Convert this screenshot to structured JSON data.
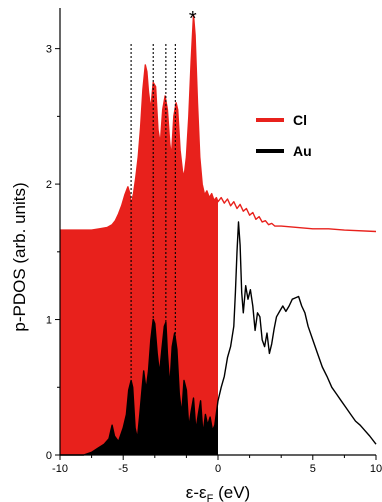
{
  "chart_data": {
    "type": "area",
    "xlabel": "ε-ε",
    "xlabel_sub": "F",
    "xlabel_unit": " (eV)",
    "ylabel": "p-PDOS (arb. units)",
    "xlim": [
      -10,
      10
    ],
    "ylim": [
      0,
      3.3
    ],
    "x_ticks": [
      -10,
      -8,
      -6,
      -4,
      -2,
      0,
      2,
      4,
      6,
      8,
      10
    ],
    "x_tick_labels": [
      "-10",
      "",
      "-5",
      "",
      "",
      "0",
      "",
      "",
      "5",
      "",
      "10"
    ],
    "y_ticks": [
      0,
      1,
      2,
      3
    ],
    "y_tick_labels": [
      "0",
      "1",
      "2",
      "3"
    ],
    "grid": false,
    "legend_position": "upper-right",
    "fermi_level": 0,
    "dotted_lines_x": [
      -5.5,
      -4.1,
      -3.3,
      -2.7
    ],
    "annotation": {
      "text": "*",
      "x": -1.6,
      "y": 3.22
    },
    "series": [
      {
        "name": "Cl",
        "color": "#e8211c",
        "fill_below": 0,
        "points": [
          [
            -10,
            1.66
          ],
          [
            -8,
            1.66
          ],
          [
            -7.5,
            1.67
          ],
          [
            -7,
            1.68
          ],
          [
            -6.7,
            1.7
          ],
          [
            -6.5,
            1.73
          ],
          [
            -6.3,
            1.78
          ],
          [
            -6.1,
            1.84
          ],
          [
            -5.9,
            1.92
          ],
          [
            -5.7,
            1.98
          ],
          [
            -5.6,
            1.94
          ],
          [
            -5.5,
            1.85
          ],
          [
            -5.35,
            1.93
          ],
          [
            -5.2,
            2.05
          ],
          [
            -5.05,
            2.2
          ],
          [
            -4.9,
            2.42
          ],
          [
            -4.75,
            2.7
          ],
          [
            -4.6,
            2.88
          ],
          [
            -4.5,
            2.83
          ],
          [
            -4.4,
            2.68
          ],
          [
            -4.25,
            2.55
          ],
          [
            -4.1,
            2.75
          ],
          [
            -3.95,
            2.72
          ],
          [
            -3.8,
            2.4
          ],
          [
            -3.65,
            2.3
          ],
          [
            -3.5,
            2.55
          ],
          [
            -3.35,
            2.65
          ],
          [
            -3.2,
            2.55
          ],
          [
            -3.05,
            2.3
          ],
          [
            -2.95,
            2.2
          ],
          [
            -2.8,
            2.5
          ],
          [
            -2.65,
            2.6
          ],
          [
            -2.55,
            2.55
          ],
          [
            -2.4,
            2.25
          ],
          [
            -2.25,
            2.1
          ],
          [
            -2.15,
            2.05
          ],
          [
            -2.0,
            2.2
          ],
          [
            -1.85,
            2.5
          ],
          [
            -1.7,
            2.9
          ],
          [
            -1.55,
            3.25
          ],
          [
            -1.45,
            3.1
          ],
          [
            -1.3,
            2.6
          ],
          [
            -1.15,
            2.2
          ],
          [
            -1.0,
            2.0
          ],
          [
            -0.85,
            1.92
          ],
          [
            -0.7,
            1.95
          ],
          [
            -0.55,
            1.9
          ],
          [
            -0.4,
            1.93
          ],
          [
            -0.25,
            1.88
          ],
          [
            -0.1,
            1.9
          ],
          [
            0.0,
            1.87
          ],
          [
            0.2,
            1.9
          ],
          [
            0.4,
            1.86
          ],
          [
            0.6,
            1.89
          ],
          [
            0.8,
            1.84
          ],
          [
            1.0,
            1.87
          ],
          [
            1.2,
            1.82
          ],
          [
            1.4,
            1.85
          ],
          [
            1.6,
            1.8
          ],
          [
            1.8,
            1.82
          ],
          [
            2.0,
            1.77
          ],
          [
            2.2,
            1.79
          ],
          [
            2.4,
            1.74
          ],
          [
            2.6,
            1.76
          ],
          [
            2.8,
            1.72
          ],
          [
            3.0,
            1.73
          ],
          [
            3.2,
            1.7
          ],
          [
            3.4,
            1.71
          ],
          [
            3.6,
            1.69
          ],
          [
            4.0,
            1.69
          ],
          [
            5.0,
            1.68
          ],
          [
            6.0,
            1.67
          ],
          [
            7.0,
            1.67
          ],
          [
            8.0,
            1.66
          ],
          [
            10.0,
            1.65
          ]
        ]
      },
      {
        "name": "Au",
        "color": "#000000",
        "fill_below": 0,
        "points": [
          [
            -10,
            0
          ],
          [
            -8.5,
            0
          ],
          [
            -8,
            0.02
          ],
          [
            -7.6,
            0.05
          ],
          [
            -7.2,
            0.08
          ],
          [
            -6.9,
            0.12
          ],
          [
            -6.7,
            0.22
          ],
          [
            -6.55,
            0.14
          ],
          [
            -6.3,
            0.1
          ],
          [
            -6.0,
            0.2
          ],
          [
            -5.8,
            0.3
          ],
          [
            -5.65,
            0.48
          ],
          [
            -5.5,
            0.55
          ],
          [
            -5.4,
            0.5
          ],
          [
            -5.25,
            0.2
          ],
          [
            -5.1,
            0.12
          ],
          [
            -4.95,
            0.3
          ],
          [
            -4.8,
            0.5
          ],
          [
            -4.7,
            0.62
          ],
          [
            -4.55,
            0.48
          ],
          [
            -4.4,
            0.62
          ],
          [
            -4.25,
            0.85
          ],
          [
            -4.1,
            1.0
          ],
          [
            -4.0,
            0.97
          ],
          [
            -3.85,
            0.75
          ],
          [
            -3.7,
            0.6
          ],
          [
            -3.55,
            0.78
          ],
          [
            -3.4,
            0.95
          ],
          [
            -3.3,
            0.98
          ],
          [
            -3.2,
            0.75
          ],
          [
            -3.05,
            0.5
          ],
          [
            -2.9,
            0.8
          ],
          [
            -2.75,
            0.9
          ],
          [
            -2.6,
            0.78
          ],
          [
            -2.45,
            0.45
          ],
          [
            -2.3,
            0.3
          ],
          [
            -2.15,
            0.55
          ],
          [
            -2.0,
            0.48
          ],
          [
            -1.85,
            0.2
          ],
          [
            -1.7,
            0.32
          ],
          [
            -1.55,
            0.42
          ],
          [
            -1.4,
            0.18
          ],
          [
            -1.25,
            0.3
          ],
          [
            -1.1,
            0.4
          ],
          [
            -0.95,
            0.15
          ],
          [
            -0.8,
            0.3
          ],
          [
            -0.65,
            0.22
          ],
          [
            -0.5,
            0.28
          ],
          [
            -0.35,
            0.18
          ],
          [
            -0.2,
            0.22
          ],
          [
            0,
            0.4
          ],
          [
            0.2,
            0.5
          ],
          [
            0.4,
            0.58
          ],
          [
            0.6,
            0.72
          ],
          [
            0.8,
            0.8
          ],
          [
            1.0,
            0.95
          ],
          [
            1.1,
            1.2
          ],
          [
            1.2,
            1.5
          ],
          [
            1.3,
            1.72
          ],
          [
            1.4,
            1.55
          ],
          [
            1.5,
            1.2
          ],
          [
            1.6,
            1.05
          ],
          [
            1.75,
            1.25
          ],
          [
            1.9,
            1.15
          ],
          [
            2.05,
            1.22
          ],
          [
            2.2,
            1.1
          ],
          [
            2.35,
            0.92
          ],
          [
            2.5,
            1.05
          ],
          [
            2.65,
            1.02
          ],
          [
            2.8,
            0.85
          ],
          [
            2.95,
            0.8
          ],
          [
            3.1,
            0.9
          ],
          [
            3.25,
            0.75
          ],
          [
            3.4,
            0.82
          ],
          [
            3.55,
            0.93
          ],
          [
            3.7,
            1.02
          ],
          [
            3.9,
            1.06
          ],
          [
            4.1,
            1.1
          ],
          [
            4.3,
            1.06
          ],
          [
            4.5,
            1.1
          ],
          [
            4.7,
            1.15
          ],
          [
            4.9,
            1.16
          ],
          [
            5.1,
            1.17
          ],
          [
            5.3,
            1.1
          ],
          [
            5.5,
            1.05
          ],
          [
            5.7,
            0.95
          ],
          [
            6.0,
            0.85
          ],
          [
            6.3,
            0.75
          ],
          [
            6.6,
            0.65
          ],
          [
            6.9,
            0.58
          ],
          [
            7.2,
            0.5
          ],
          [
            7.5,
            0.45
          ],
          [
            7.8,
            0.4
          ],
          [
            8.1,
            0.35
          ],
          [
            8.4,
            0.3
          ],
          [
            8.7,
            0.25
          ],
          [
            9.0,
            0.22
          ],
          [
            9.3,
            0.18
          ],
          [
            9.6,
            0.14
          ],
          [
            10.0,
            0.08
          ]
        ]
      }
    ]
  }
}
